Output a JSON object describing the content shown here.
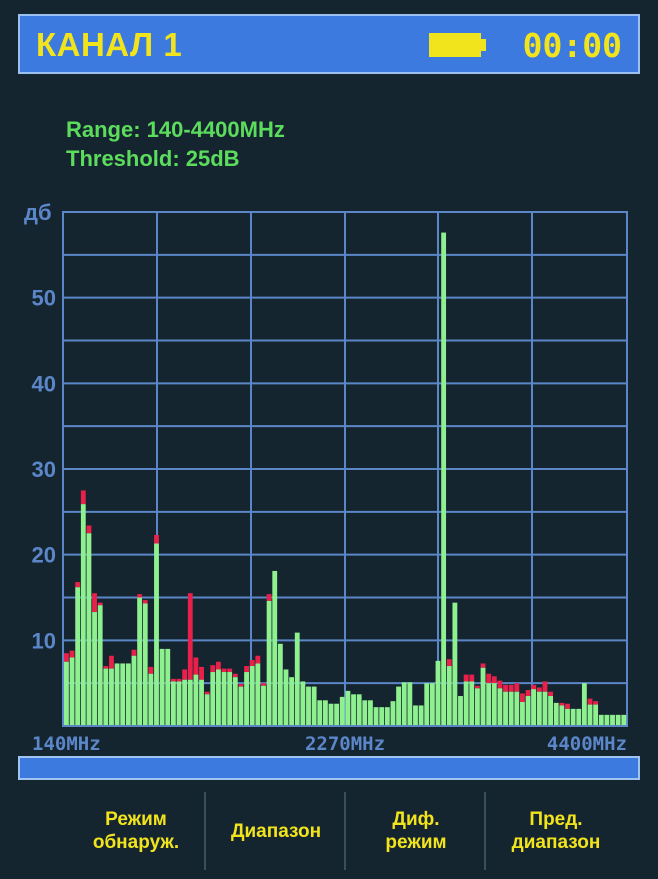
{
  "header": {
    "title": "КАНАЛ 1",
    "clock": "00:00",
    "battery_icon": "battery-full-icon"
  },
  "info": {
    "range": "Range: 140-4400MHz",
    "threshold": "Threshold: 25dB"
  },
  "colors": {
    "accent": "#3c7ae0",
    "text_yellow": "#f2e41c",
    "green": "#8ef08e",
    "peak_red": "#e8204a",
    "grid": "#5b86c8",
    "info_green": "#5cdc5c"
  },
  "softkeys": [
    {
      "label": "Режим\nобнаруж."
    },
    {
      "label": "Диапазон"
    },
    {
      "label": "Диф.\nрежим"
    },
    {
      "label": "Пред.\nдиапазон"
    }
  ],
  "chart_data": {
    "type": "bar",
    "ylabel": "дб",
    "ylim": [
      0,
      60
    ],
    "yticks": [
      10,
      20,
      30,
      40,
      50
    ],
    "xlabels": [
      "140MHz",
      "2270MHz",
      "4400MHz"
    ],
    "grid": true,
    "series": [
      {
        "values": [
          7.5,
          8.0,
          16.2,
          25.9,
          22.5,
          13.3,
          14.1,
          6.7,
          6.7,
          7.3,
          7.3,
          7.3,
          8.2,
          15.0,
          14.3,
          6.1,
          21.3,
          9.0,
          9.0,
          5.2,
          5.2,
          5.4,
          5.4,
          6.0,
          5.4,
          3.7,
          6.3,
          6.6,
          6.3,
          6.3,
          5.7,
          4.6,
          6.3,
          7.0,
          7.3,
          4.7,
          14.6,
          18.1,
          9.6,
          6.6,
          5.7,
          10.9,
          5.2,
          4.6,
          4.6,
          3.0,
          3.0,
          2.6,
          2.6,
          3.4,
          4.1,
          3.7,
          3.7,
          3.0,
          3.0,
          2.2,
          2.2,
          2.2,
          2.9,
          4.6,
          5.1,
          5.1,
          2.4,
          2.4,
          5.0,
          5.0,
          7.6,
          57.6,
          7.0,
          14.4,
          3.5,
          5.2,
          5.2,
          4.4,
          6.8,
          5.0,
          5.0,
          4.4,
          4.0,
          4.0,
          4.0,
          2.8,
          3.5,
          4.3,
          4.0,
          4.0,
          3.5,
          2.7,
          2.4,
          2.0,
          2.0,
          2.0,
          5.0,
          2.5,
          2.5,
          1.3,
          1.3,
          1.3,
          1.3,
          1.3
        ]
      },
      {
        "values": [
          8.5,
          8.8,
          16.8,
          27.5,
          23.4,
          15.5,
          14.4,
          7.0,
          8.2,
          7.3,
          7.3,
          7.3,
          8.9,
          15.4,
          14.7,
          6.9,
          22.3,
          9.0,
          9.0,
          5.5,
          5.5,
          6.6,
          15.5,
          8.0,
          6.9,
          4.0,
          7.1,
          7.5,
          6.7,
          6.7,
          6.1,
          4.9,
          7.0,
          7.7,
          8.2,
          5.0,
          15.4,
          18.1,
          9.6,
          6.6,
          5.7,
          10.9,
          5.2,
          4.6,
          4.6,
          3.0,
          3.0,
          2.6,
          2.6,
          3.4,
          4.1,
          3.7,
          3.7,
          3.0,
          3.0,
          2.2,
          2.2,
          2.2,
          2.9,
          4.6,
          5.1,
          5.1,
          2.4,
          2.4,
          5.0,
          5.0,
          7.6,
          57.6,
          7.8,
          14.4,
          3.5,
          6.0,
          6.0,
          4.7,
          7.3,
          6.1,
          5.8,
          5.3,
          4.8,
          4.8,
          5.0,
          3.8,
          4.2,
          4.8,
          4.5,
          5.2,
          4.0,
          2.7,
          2.7,
          2.6,
          2.0,
          2.0,
          5.0,
          3.2,
          2.9,
          1.3,
          1.3,
          1.3,
          1.3,
          1.3
        ]
      }
    ]
  }
}
